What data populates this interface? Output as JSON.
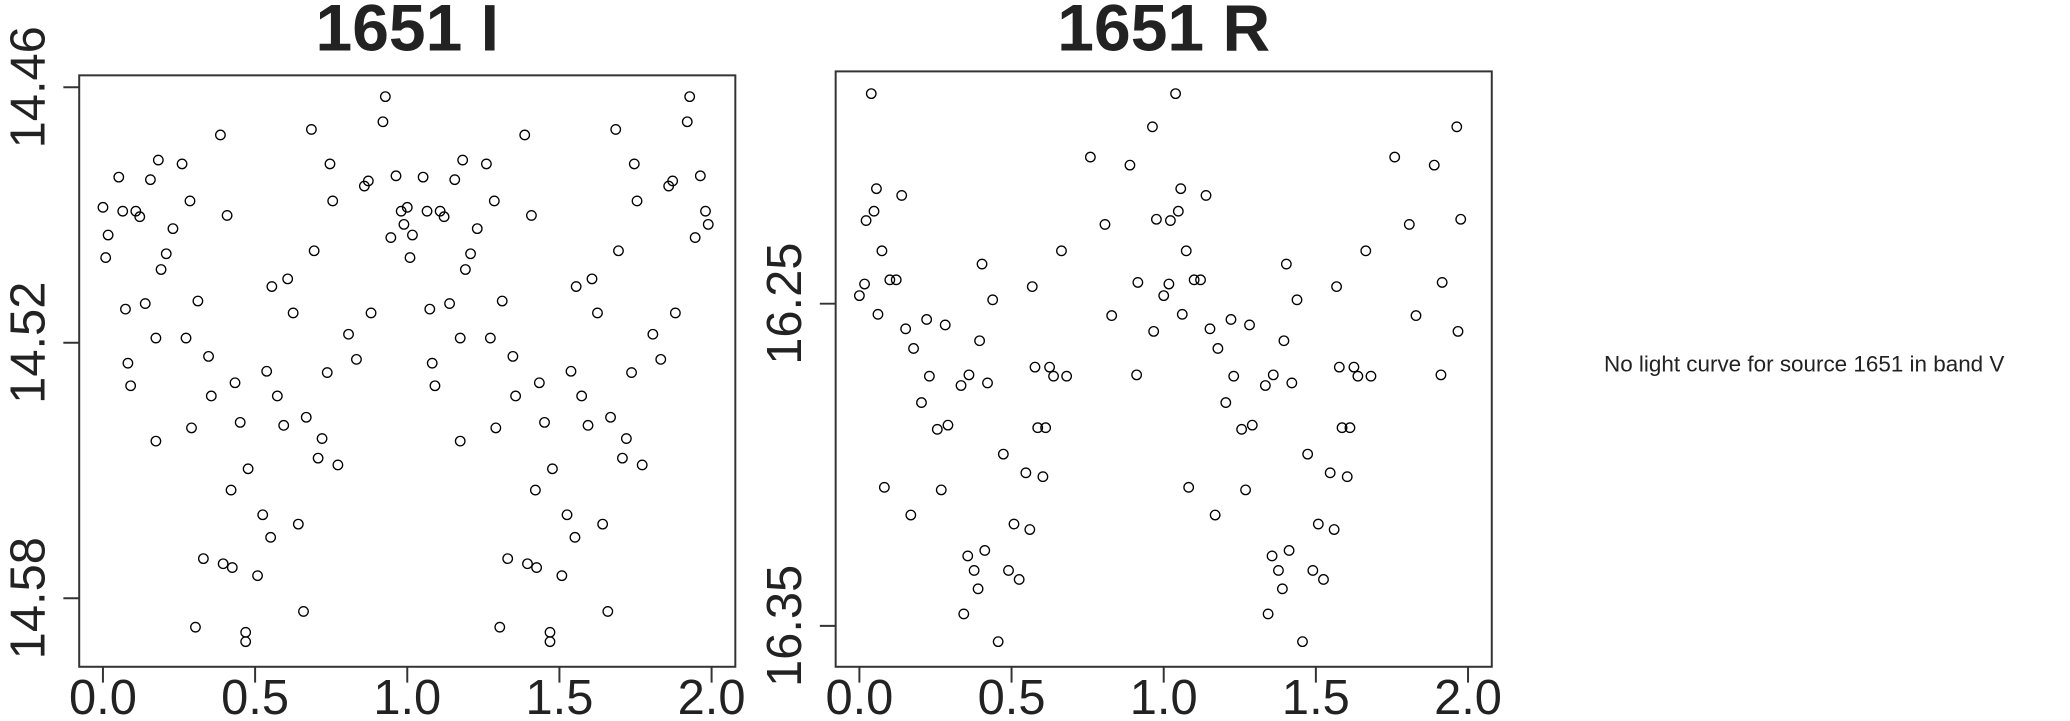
{
  "chart_data": [
    {
      "type": "scatter",
      "title": "1651 I",
      "color": "#000000",
      "xlim": [
        -0.078,
        2.078
      ],
      "ylim": [
        14.5961,
        14.4572
      ],
      "xticks": [
        {
          "value": 0,
          "label": "0.0"
        },
        0.5,
        {
          "value": 1,
          "label": "1.0"
        },
        1.5,
        {
          "value": 2,
          "label": "2.0"
        }
      ],
      "yticks": [
        14.46,
        14.52,
        14.58
      ],
      "x": [
        0,
        0.017,
        0.009,
        0.052,
        0.065,
        0.082,
        0.074,
        0.091,
        0.108,
        0.121,
        0.139,
        0.156,
        0.174,
        0.174,
        0.182,
        0.191,
        0.208,
        0.23,
        0.26,
        0.273,
        0.286,
        0.291,
        0.304,
        0.312,
        0.33,
        0.347,
        0.356,
        0.386,
        0.395,
        0.408,
        0.421,
        0.425,
        0.434,
        0.451,
        0.469,
        0.469,
        0.477,
        0.508,
        0.525,
        0.538,
        0.551,
        0.555,
        0.573,
        0.594,
        0.607,
        0.625,
        0.642,
        0.659,
        0.668,
        0.685,
        0.694,
        0.707,
        0.72,
        0.737,
        0.746,
        0.755,
        0.772,
        0.807,
        0.833,
        0.859,
        0.872,
        0.881,
        0.92,
        0.928,
        0.946,
        0.963,
        0.98,
        0.989,
        1,
        1.017,
        1.009,
        1.052,
        1.065,
        1.082,
        1.074,
        1.091,
        1.108,
        1.121,
        1.139,
        1.156,
        1.174,
        1.174,
        1.182,
        1.191,
        1.208,
        1.23,
        1.26,
        1.273,
        1.286,
        1.291,
        1.304,
        1.312,
        1.33,
        1.347,
        1.356,
        1.386,
        1.395,
        1.408,
        1.421,
        1.425,
        1.434,
        1.451,
        1.469,
        1.469,
        1.477,
        1.508,
        1.525,
        1.538,
        1.551,
        1.555,
        1.573,
        1.594,
        1.607,
        1.625,
        1.642,
        1.659,
        1.668,
        1.685,
        1.694,
        1.707,
        1.72,
        1.737,
        1.746,
        1.755,
        1.772,
        1.807,
        1.833,
        1.859,
        1.872,
        1.881,
        1.92,
        1.928,
        1.946,
        1.963,
        1.98,
        1.989
      ],
      "values": [
        14.4882,
        14.4947,
        14.5,
        14.4811,
        14.4891,
        14.5248,
        14.5121,
        14.5301,
        14.4891,
        14.4904,
        14.5108,
        14.4817,
        14.5431,
        14.5189,
        14.4771,
        14.5028,
        14.4991,
        14.4932,
        14.478,
        14.5189,
        14.4867,
        14.54,
        14.5868,
        14.5102,
        14.5707,
        14.5232,
        14.5325,
        14.4712,
        14.5719,
        14.4901,
        14.5546,
        14.5728,
        14.5294,
        14.5387,
        14.5902,
        14.588,
        14.5496,
        14.5747,
        14.5604,
        14.5267,
        14.5657,
        14.5068,
        14.5325,
        14.5394,
        14.505,
        14.513,
        14.5626,
        14.5831,
        14.5375,
        14.4699,
        14.4984,
        14.5471,
        14.5425,
        14.527,
        14.478,
        14.4867,
        14.5487,
        14.518,
        14.5239,
        14.4832,
        14.482,
        14.513,
        14.4681,
        14.4622,
        14.4953,
        14.4808,
        14.4891,
        14.4922,
        14.4882,
        14.4947,
        14.5,
        14.4811,
        14.4891,
        14.5248,
        14.5121,
        14.5301,
        14.4891,
        14.4904,
        14.5108,
        14.4817,
        14.5431,
        14.5189,
        14.4771,
        14.5028,
        14.4991,
        14.4932,
        14.478,
        14.5189,
        14.4867,
        14.54,
        14.5868,
        14.5102,
        14.5707,
        14.5232,
        14.5325,
        14.4712,
        14.5719,
        14.4901,
        14.5546,
        14.5728,
        14.5294,
        14.5387,
        14.5902,
        14.588,
        14.5496,
        14.5747,
        14.5604,
        14.5267,
        14.5657,
        14.5068,
        14.5325,
        14.5394,
        14.505,
        14.513,
        14.5626,
        14.5831,
        14.5375,
        14.4699,
        14.4984,
        14.5471,
        14.5425,
        14.527,
        14.478,
        14.4867,
        14.5487,
        14.518,
        14.5239,
        14.4832,
        14.482,
        14.513,
        14.4681,
        14.4622,
        14.4953,
        14.4808,
        14.4891,
        14.4922
      ]
    },
    {
      "type": "scatter",
      "title": "1651 R",
      "color": "#000000",
      "xlim": [
        -0.078,
        2.078
      ],
      "ylim": [
        16.3627,
        16.1779
      ],
      "xticks": [
        {
          "value": 0,
          "label": "0.0"
        },
        0.5,
        {
          "value": 1,
          "label": "1.0"
        },
        1.5,
        {
          "value": 2,
          "label": "2.0"
        }
      ],
      "yticks": [
        16.25,
        16.35
      ],
      "x": [
        0,
        0.017,
        0.022,
        0.039,
        0.048,
        0.056,
        0.061,
        0.074,
        0.082,
        0.1,
        0.121,
        0.139,
        0.152,
        0.169,
        0.178,
        0.204,
        0.221,
        0.23,
        0.256,
        0.269,
        0.282,
        0.291,
        0.334,
        0.343,
        0.356,
        0.36,
        0.377,
        0.39,
        0.395,
        0.403,
        0.412,
        0.421,
        0.438,
        0.456,
        0.473,
        0.49,
        0.508,
        0.525,
        0.547,
        0.56,
        0.568,
        0.577,
        0.586,
        0.603,
        0.612,
        0.625,
        0.638,
        0.681,
        0.664,
        0.759,
        0.807,
        0.829,
        0.889,
        0.911,
        0.915,
        0.963,
        0.967,
        0.976,
        1,
        1.017,
        1.022,
        1.039,
        1.048,
        1.056,
        1.061,
        1.074,
        1.082,
        1.1,
        1.121,
        1.139,
        1.152,
        1.169,
        1.178,
        1.204,
        1.221,
        1.23,
        1.256,
        1.269,
        1.282,
        1.291,
        1.334,
        1.343,
        1.356,
        1.36,
        1.377,
        1.39,
        1.395,
        1.403,
        1.412,
        1.421,
        1.438,
        1.456,
        1.473,
        1.49,
        1.508,
        1.525,
        1.547,
        1.56,
        1.568,
        1.577,
        1.586,
        1.603,
        1.612,
        1.625,
        1.638,
        1.681,
        1.664,
        1.759,
        1.807,
        1.829,
        1.889,
        1.911,
        1.915,
        1.963,
        1.967,
        1.976
      ],
      "values": [
        16.2475,
        16.2439,
        16.2242,
        16.1848,
        16.2213,
        16.2143,
        16.2533,
        16.2336,
        16.307,
        16.2426,
        16.2426,
        16.2164,
        16.2578,
        16.3156,
        16.2639,
        16.2807,
        16.2549,
        16.2725,
        16.289,
        16.3078,
        16.2566,
        16.2877,
        16.2754,
        16.3463,
        16.3283,
        16.2721,
        16.3328,
        16.3385,
        16.2615,
        16.2377,
        16.3266,
        16.2746,
        16.2488,
        16.3549,
        16.2967,
        16.3328,
        16.3184,
        16.3356,
        16.3025,
        16.3201,
        16.2447,
        16.2697,
        16.2885,
        16.3037,
        16.2885,
        16.2697,
        16.2725,
        16.2725,
        16.2336,
        16.2045,
        16.2254,
        16.2537,
        16.207,
        16.2721,
        16.2434,
        16.1951,
        16.2586,
        16.2238,
        16.2475,
        16.2439,
        16.2242,
        16.1848,
        16.2213,
        16.2143,
        16.2533,
        16.2336,
        16.307,
        16.2426,
        16.2426,
        16.2164,
        16.2578,
        16.3156,
        16.2639,
        16.2807,
        16.2549,
        16.2725,
        16.289,
        16.3078,
        16.2566,
        16.2877,
        16.2754,
        16.3463,
        16.3283,
        16.2721,
        16.3328,
        16.3385,
        16.2615,
        16.2377,
        16.3266,
        16.2746,
        16.2488,
        16.3549,
        16.2967,
        16.3328,
        16.3184,
        16.3356,
        16.3025,
        16.3201,
        16.2447,
        16.2697,
        16.2885,
        16.3037,
        16.2885,
        16.2697,
        16.2725,
        16.2725,
        16.2336,
        16.2045,
        16.2254,
        16.2537,
        16.207,
        16.2721,
        16.2434,
        16.1951,
        16.2586,
        16.2238
      ]
    }
  ],
  "notice": "No light curve for source 1651 in band V"
}
